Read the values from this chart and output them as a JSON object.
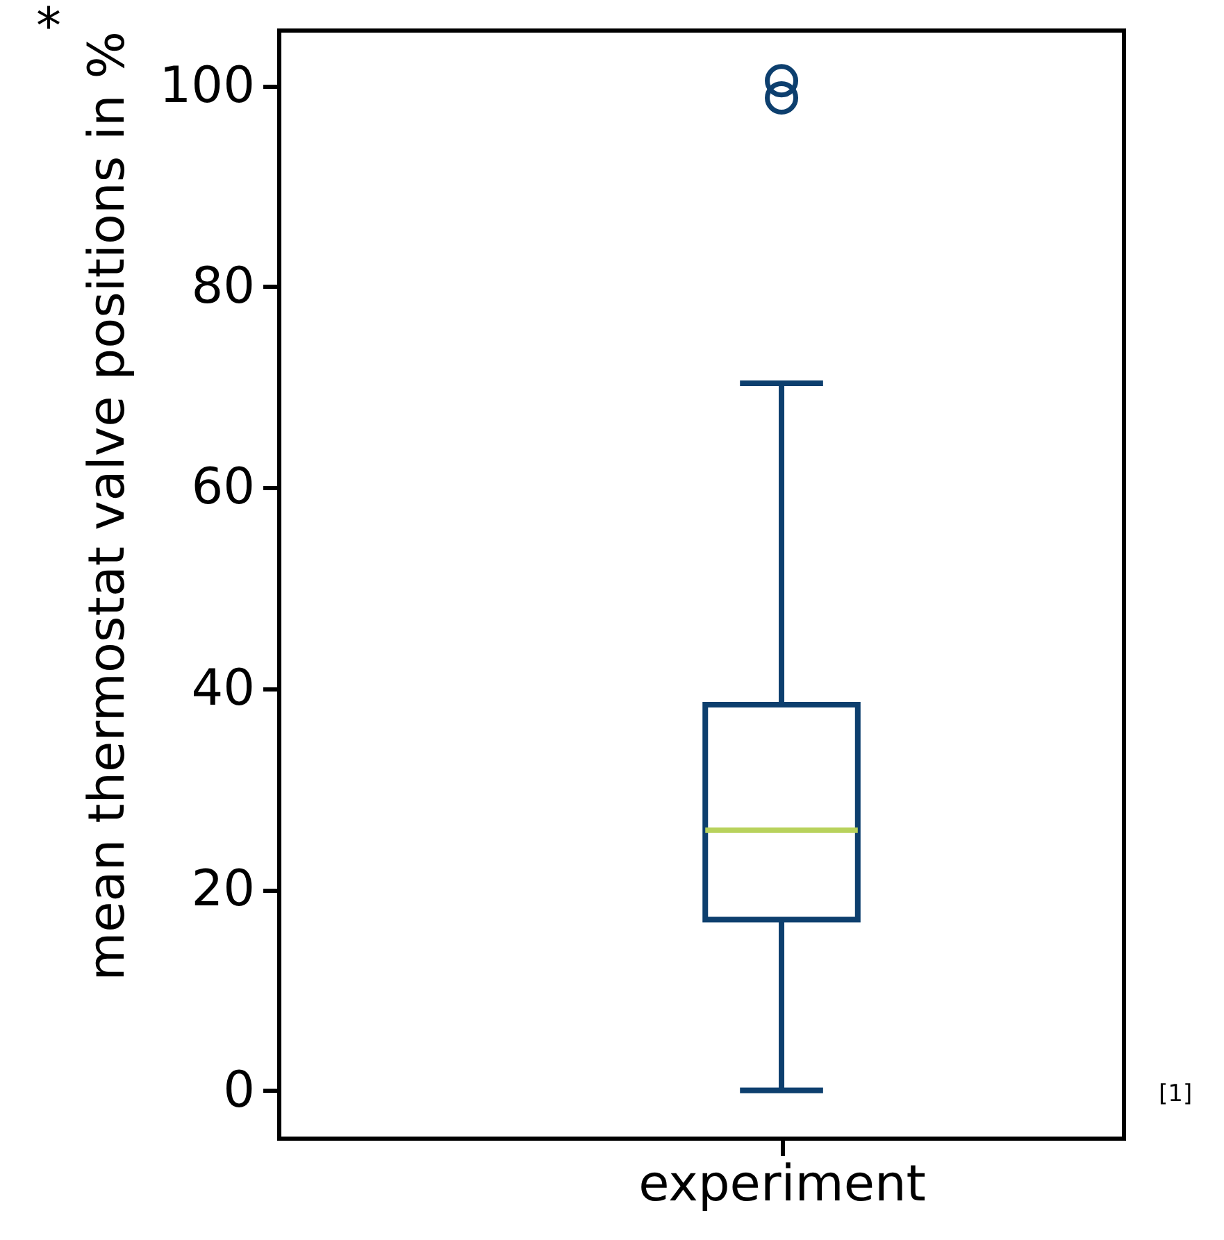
{
  "chart_data": {
    "type": "box",
    "ylabel": "mean thermostat valve positions in %$^{*}$",
    "categories": [
      "experiment"
    ],
    "series": [
      {
        "color": "#0d3f6e",
        "boxes": [
          {
            "low": 0,
            "q1": 17,
            "median": 25.9,
            "q3": 38.4,
            "high": 70.4,
            "outliers": [
              98.8,
              100.5
            ]
          }
        ]
      }
    ],
    "ylim": [
      -4.8,
      105.5
    ],
    "yticks": [
      0,
      20,
      40,
      60,
      80,
      100
    ],
    "grid": false,
    "annotations": [
      "[1]"
    ]
  }
}
